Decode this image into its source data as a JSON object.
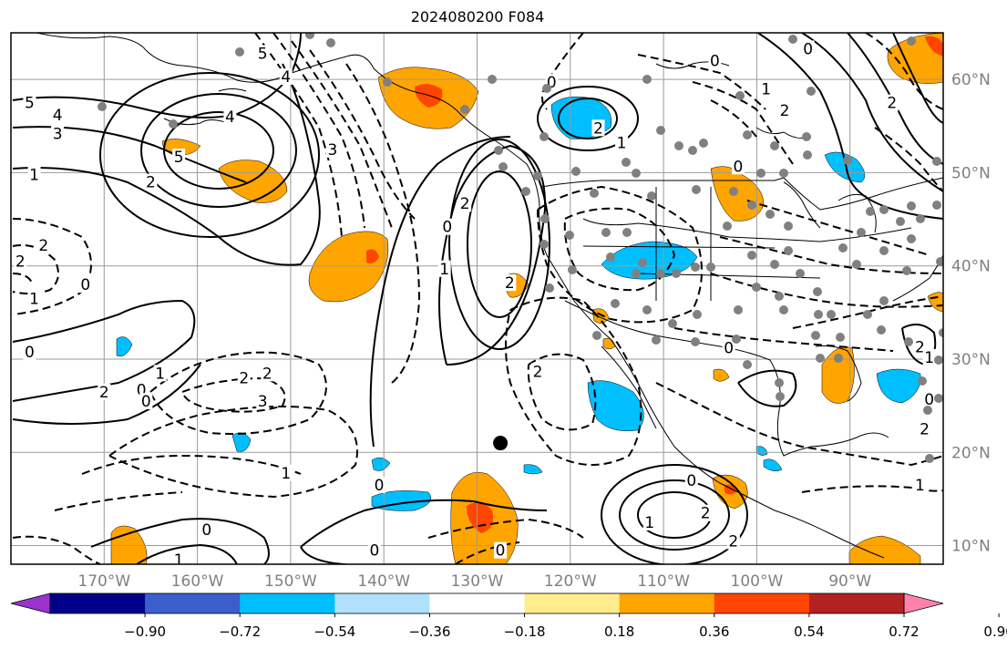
{
  "title": "2024080200 F084",
  "map": {
    "lon_range": [
      -180,
      -80
    ],
    "lat_range": [
      8,
      65
    ],
    "lon_gridlines": [
      -170,
      -160,
      -150,
      -140,
      -130,
      -120,
      -110,
      -100,
      -90
    ],
    "lat_gridlines": [
      10,
      20,
      30,
      40,
      50,
      60
    ],
    "lon_labels": [
      "170°W",
      "160°W",
      "150°W",
      "140°W",
      "130°W",
      "120°W",
      "110°W",
      "100°W",
      "90°W"
    ],
    "lat_labels": [
      "10°N",
      "20°N",
      "30°N",
      "40°N",
      "50°N",
      "60°N"
    ],
    "marker": {
      "lon": -127.5,
      "lat": 21,
      "color": "#000000"
    }
  },
  "colorbar": {
    "colors": [
      "#9a32cd",
      "#00008b",
      "#3a5fcd",
      "#00bfff",
      "#b0e2ff",
      "#ffffff",
      "#ffec8b",
      "#ffa500",
      "#ff4500",
      "#b22222",
      "#ff82ab"
    ],
    "tick_labels": [
      "−0.90",
      "−0.72",
      "−0.54",
      "−0.36",
      "−0.18",
      "0.18",
      "0.36",
      "0.54",
      "0.72",
      "0.90"
    ]
  },
  "contour_labels": [
    {
      "t": "5",
      "lon": -178,
      "lat": 57.5
    },
    {
      "t": "4",
      "lon": -175,
      "lat": 56.2
    },
    {
      "t": "3",
      "lon": -175,
      "lat": 54.2
    },
    {
      "t": "1",
      "lon": -177.5,
      "lat": 49.8
    },
    {
      "t": "2",
      "lon": -165,
      "lat": 49
    },
    {
      "t": "5",
      "lon": -162,
      "lat": 51.7
    },
    {
      "t": "4",
      "lon": -156.5,
      "lat": 56
    },
    {
      "t": "5",
      "lon": -153,
      "lat": 62.8
    },
    {
      "t": "4",
      "lon": -150.5,
      "lat": 60.3
    },
    {
      "t": "3",
      "lon": -145.5,
      "lat": 52.5
    },
    {
      "t": "2",
      "lon": -179,
      "lat": 40.5
    },
    {
      "t": "2",
      "lon": -176.5,
      "lat": 42.2
    },
    {
      "t": "1",
      "lon": -177.5,
      "lat": 36.5
    },
    {
      "t": "0",
      "lon": -172,
      "lat": 38
    },
    {
      "t": "0",
      "lon": -178,
      "lat": 30.8
    },
    {
      "t": "2",
      "lon": -170,
      "lat": 26.5
    },
    {
      "t": "0",
      "lon": -166,
      "lat": 26.7
    },
    {
      "t": "1",
      "lon": -164,
      "lat": 28.5
    },
    {
      "t": "0",
      "lon": -165.5,
      "lat": 25.5
    },
    {
      "t": "2",
      "lon": -155,
      "lat": 28
    },
    {
      "t": "2",
      "lon": -152.5,
      "lat": 28.5
    },
    {
      "t": "3",
      "lon": -153,
      "lat": 25.5
    },
    {
      "t": "1",
      "lon": -150.5,
      "lat": 17.8
    },
    {
      "t": "0",
      "lon": -159,
      "lat": 11.7
    },
    {
      "t": "1",
      "lon": -162,
      "lat": 8.5
    },
    {
      "t": "0",
      "lon": -133.2,
      "lat": 44.2
    },
    {
      "t": "2",
      "lon": -131.3,
      "lat": 46.7
    },
    {
      "t": "1",
      "lon": -133.5,
      "lat": 39.7
    },
    {
      "t": "2",
      "lon": -126.5,
      "lat": 38.2
    },
    {
      "t": "0",
      "lon": -140.5,
      "lat": 16.5
    },
    {
      "t": "0",
      "lon": -141,
      "lat": 9.5
    },
    {
      "t": "0",
      "lon": -127.5,
      "lat": 9.5
    },
    {
      "t": "0",
      "lon": -122,
      "lat": 59.7
    },
    {
      "t": "2",
      "lon": -117,
      "lat": 54.8
    },
    {
      "t": "1",
      "lon": -114.5,
      "lat": 53.2
    },
    {
      "t": "0",
      "lon": -104.5,
      "lat": 62
    },
    {
      "t": "1",
      "lon": -99,
      "lat": 59
    },
    {
      "t": "2",
      "lon": -97,
      "lat": 56.7
    },
    {
      "t": "0",
      "lon": -102,
      "lat": 50.7
    },
    {
      "t": "0",
      "lon": -94.5,
      "lat": 63.3
    },
    {
      "t": "2",
      "lon": -85.5,
      "lat": 57.5
    },
    {
      "t": "2",
      "lon": -123.5,
      "lat": 28.7
    },
    {
      "t": "0",
      "lon": -103,
      "lat": 31.2
    },
    {
      "t": "0",
      "lon": -107,
      "lat": 17
    },
    {
      "t": "2",
      "lon": -105.5,
      "lat": 13.5
    },
    {
      "t": "1",
      "lon": -111.5,
      "lat": 12.5
    },
    {
      "t": "2",
      "lon": -102.5,
      "lat": 10.5
    },
    {
      "t": "2",
      "lon": -82.5,
      "lat": 31.3
    },
    {
      "t": "1",
      "lon": -81.5,
      "lat": 30.2
    },
    {
      "t": "0",
      "lon": -81.5,
      "lat": 25.7
    },
    {
      "t": "2",
      "lon": -82,
      "lat": 22.5
    },
    {
      "t": "1",
      "lon": -82.5,
      "lat": 16.5
    }
  ]
}
